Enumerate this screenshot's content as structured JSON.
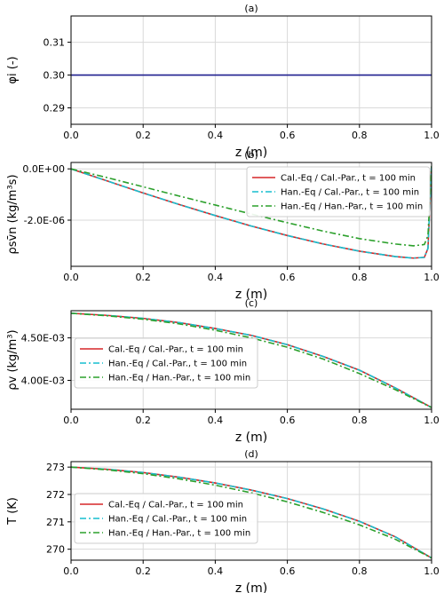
{
  "chart_data": [
    {
      "type": "line",
      "title": "(a)",
      "xlabel": "z (m)",
      "ylabel": "φi (-)",
      "xlim": [
        0,
        1
      ],
      "ylim": [
        0.285,
        0.318
      ],
      "xticks": [
        "0.0",
        "0.2",
        "0.4",
        "0.6",
        "0.8",
        "1.0"
      ],
      "yticks": [
        {
          "value": 0.29,
          "label": "0.29"
        },
        {
          "value": 0.3,
          "label": "0.30"
        },
        {
          "value": 0.31,
          "label": "0.31"
        }
      ],
      "grid": true,
      "series": [
        {
          "color": "#1f1f8f",
          "dash": "solid",
          "x": [
            0,
            1
          ],
          "y": [
            0.3,
            0.3
          ]
        }
      ]
    },
    {
      "type": "line",
      "title": "(b)",
      "xlabel": "z (m)",
      "ylabel": "ρsv̄n (kg/m³s)",
      "xlim": [
        0,
        1
      ],
      "ylim": [
        -3.8e-06,
        2.5e-07
      ],
      "xticks": [
        "0.0",
        "0.2",
        "0.4",
        "0.6",
        "0.8",
        "1.0"
      ],
      "yticks": [
        {
          "value": 0.0,
          "label": "0.0E+00"
        },
        {
          "value": -2e-06,
          "label": "-2.0E-06"
        }
      ],
      "grid": true,
      "legend": "top-right",
      "series": [
        {
          "name": "Cal.-Eq / Cal.-Par., t = 100 min",
          "color": "#d62728",
          "dash": "solid",
          "x": [
            0,
            0.1,
            0.2,
            0.3,
            0.4,
            0.5,
            0.6,
            0.7,
            0.8,
            0.9,
            0.95,
            0.98,
            0.99,
            1.0
          ],
          "y": [
            0,
            -4.7e-07,
            -9.4e-07,
            -1.39e-06,
            -1.82e-06,
            -2.23e-06,
            -2.6e-06,
            -2.93e-06,
            -3.21e-06,
            -3.42e-06,
            -3.48e-06,
            -3.45e-06,
            -3.1e-06,
            1e-07
          ]
        },
        {
          "name": "Han.-Eq / Cal.-Par., t = 100 min",
          "color": "#17becf",
          "dash": "dashdot",
          "x": [
            0,
            0.1,
            0.2,
            0.3,
            0.4,
            0.5,
            0.6,
            0.7,
            0.8,
            0.9,
            0.95,
            0.98,
            0.99,
            1.0
          ],
          "y": [
            0,
            -4.7e-07,
            -9.4e-07,
            -1.39e-06,
            -1.82e-06,
            -2.23e-06,
            -2.6e-06,
            -2.93e-06,
            -3.21e-06,
            -3.42e-06,
            -3.48e-06,
            -3.45e-06,
            -3.1e-06,
            1e-07
          ]
        },
        {
          "name": "Han.-Eq / Han.-Par., t = 100 min",
          "color": "#2ca02c",
          "dash": "dashdot",
          "x": [
            0,
            0.1,
            0.2,
            0.3,
            0.4,
            0.5,
            0.6,
            0.7,
            0.8,
            0.9,
            0.95,
            0.98,
            0.99,
            1.0
          ],
          "y": [
            0,
            -3.4e-07,
            -7e-07,
            -1.06e-06,
            -1.41e-06,
            -1.76e-06,
            -2.1e-06,
            -2.43e-06,
            -2.72e-06,
            -2.93e-06,
            -3e-06,
            -2.95e-06,
            -2.6e-06,
            1e-07
          ]
        }
      ]
    },
    {
      "type": "line",
      "title": "(c)",
      "xlabel": "z (m)",
      "ylabel": "ρv (kg/m³)",
      "xlim": [
        0,
        1
      ],
      "ylim": [
        0.00366,
        0.00482
      ],
      "xticks": [
        "0.0",
        "0.2",
        "0.4",
        "0.6",
        "0.8",
        "1.0"
      ],
      "yticks": [
        {
          "value": 0.0045,
          "label": "4.50E-03"
        },
        {
          "value": 0.004,
          "label": "4.00E-03"
        }
      ],
      "grid": true,
      "legend": "lower-left",
      "series": [
        {
          "name": "Cal.-Eq / Cal.-Par., t = 100 min",
          "color": "#d62728",
          "dash": "solid",
          "x": [
            0,
            0.1,
            0.2,
            0.3,
            0.4,
            0.5,
            0.6,
            0.7,
            0.8,
            0.9,
            1.0
          ],
          "y": [
            0.00479,
            0.004765,
            0.00473,
            0.00468,
            0.00461,
            0.00453,
            0.00442,
            0.00428,
            0.00412,
            0.00391,
            0.00368
          ]
        },
        {
          "name": "Han.-Eq / Cal.-Par., t = 100 min",
          "color": "#17becf",
          "dash": "dashdot",
          "x": [
            0,
            0.1,
            0.2,
            0.3,
            0.4,
            0.5,
            0.6,
            0.7,
            0.8,
            0.9,
            1.0
          ],
          "y": [
            0.00479,
            0.004765,
            0.00473,
            0.00468,
            0.00461,
            0.00453,
            0.00442,
            0.00428,
            0.00412,
            0.00391,
            0.00368
          ]
        },
        {
          "name": "Han.-Eq / Han.-Par., t = 100 min",
          "color": "#2ca02c",
          "dash": "dashdot",
          "x": [
            0,
            0.1,
            0.2,
            0.3,
            0.4,
            0.5,
            0.6,
            0.7,
            0.8,
            0.9,
            1.0
          ],
          "y": [
            0.00479,
            0.00476,
            0.00472,
            0.004665,
            0.00459,
            0.0045,
            0.00439,
            0.00425,
            0.00408,
            0.00389,
            0.00368
          ]
        }
      ]
    },
    {
      "type": "line",
      "title": "(d)",
      "xlabel": "z (m)",
      "ylabel": "T (K)",
      "xlim": [
        0,
        1
      ],
      "ylim": [
        269.6,
        273.2
      ],
      "xticks": [
        "0.0",
        "0.2",
        "0.4",
        "0.6",
        "0.8",
        "1.0"
      ],
      "yticks": [
        {
          "value": 270,
          "label": "270"
        },
        {
          "value": 271,
          "label": "271"
        },
        {
          "value": 272,
          "label": "272"
        },
        {
          "value": 273,
          "label": "273"
        }
      ],
      "grid": true,
      "legend": "lower-left",
      "series": [
        {
          "name": "Cal.-Eq / Cal.-Par., t = 100 min",
          "color": "#d62728",
          "dash": "solid",
          "x": [
            0,
            0.1,
            0.2,
            0.3,
            0.4,
            0.5,
            0.6,
            0.7,
            0.8,
            0.9,
            1.0
          ],
          "y": [
            273.0,
            272.92,
            272.8,
            272.63,
            272.42,
            272.16,
            271.85,
            271.47,
            271.02,
            270.45,
            269.68
          ]
        },
        {
          "name": "Han.-Eq / Cal.-Par., t = 100 min",
          "color": "#17becf",
          "dash": "dashdot",
          "x": [
            0,
            0.1,
            0.2,
            0.3,
            0.4,
            0.5,
            0.6,
            0.7,
            0.8,
            0.9,
            1.0
          ],
          "y": [
            273.0,
            272.92,
            272.8,
            272.63,
            272.42,
            272.16,
            271.85,
            271.47,
            271.02,
            270.45,
            269.68
          ]
        },
        {
          "name": "Han.-Eq / Han.-Par., t = 100 min",
          "color": "#2ca02c",
          "dash": "dashdot",
          "x": [
            0,
            0.1,
            0.2,
            0.3,
            0.4,
            0.5,
            0.6,
            0.7,
            0.8,
            0.9,
            1.0
          ],
          "y": [
            273.0,
            272.9,
            272.76,
            272.57,
            272.34,
            272.06,
            271.73,
            271.34,
            270.89,
            270.36,
            269.68
          ]
        }
      ]
    }
  ]
}
